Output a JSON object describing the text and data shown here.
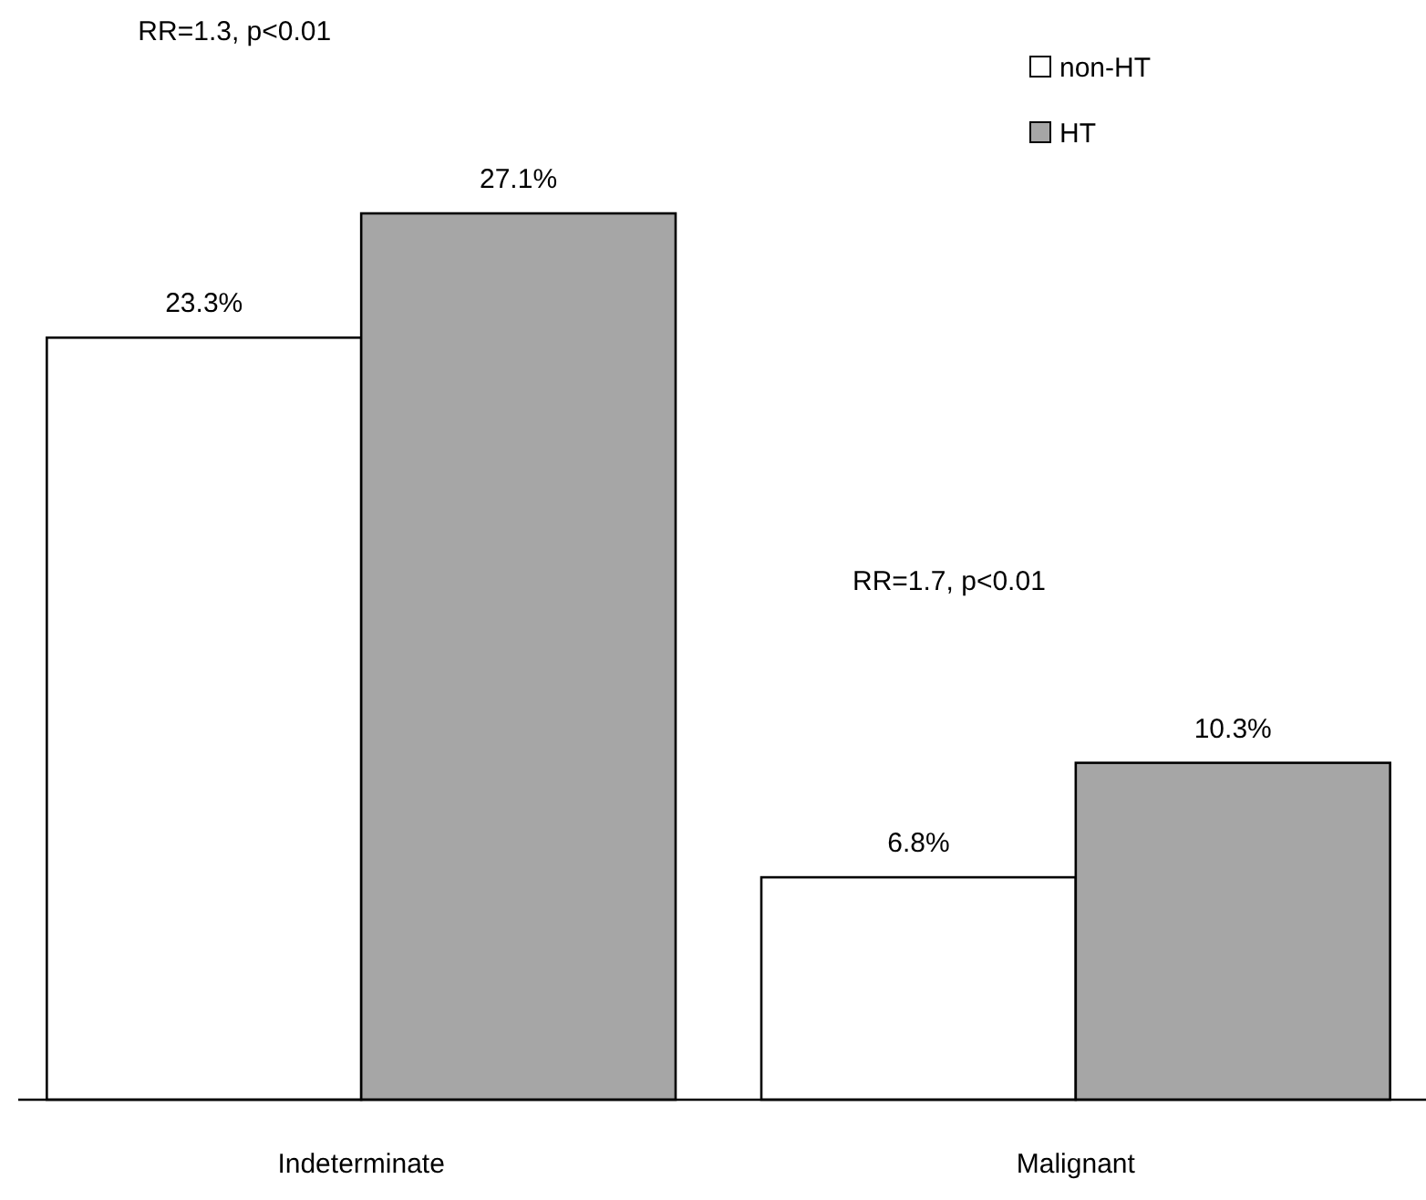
{
  "chart_data": {
    "type": "bar",
    "categories": [
      "Indeterminate",
      "Malignant"
    ],
    "series": [
      {
        "name": "non-HT",
        "color": "#ffffff",
        "values": [
          23.3,
          6.8
        ],
        "value_labels": [
          "23.3%",
          "6.8%"
        ]
      },
      {
        "name": "HT",
        "color": "#a6a6a6",
        "values": [
          27.1,
          10.3
        ],
        "value_labels": [
          "27.1%",
          "10.3%"
        ]
      }
    ],
    "legend": "top right",
    "annotations": [
      "RR=1.3, p<0.01",
      "RR=1.7, p<0.01"
    ]
  }
}
